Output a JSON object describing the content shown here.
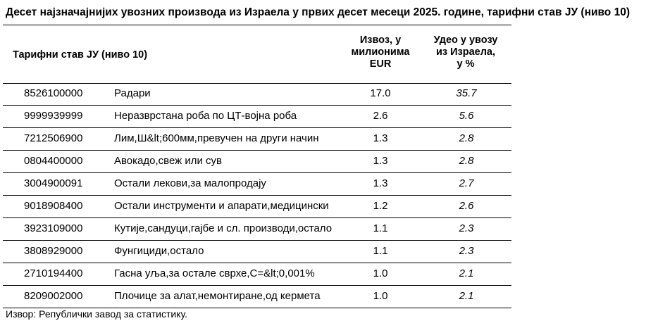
{
  "title": "Десет најзначајнијих увозних производа из Израела у првих десет месеци 2025. године, тарифни став ЈУ (ниво 10)",
  "header": {
    "label": "Тарифни став ЈУ (ниво 10)",
    "export": [
      "Извоз, у",
      "милионима",
      "EUR"
    ],
    "share": [
      "Удео у увозу",
      "из Израела,",
      "у %"
    ]
  },
  "rows": [
    {
      "code": "8526100000",
      "desc": "Радари",
      "export": "17.0",
      "share": "35.7"
    },
    {
      "code": "9999939999",
      "desc": "Неразврстана роба по ЦТ-војна роба",
      "export": "2.6",
      "share": "5.6"
    },
    {
      "code": "7212506900",
      "desc": "Лим,Ш&lt;600мм,превучен на други начин",
      "export": "1.3",
      "share": "2.8"
    },
    {
      "code": "0804400000",
      "desc": "Авокадо,свеж или сув",
      "export": "1.3",
      "share": "2.8"
    },
    {
      "code": "3004900091",
      "desc": "Остали лекови,за малопродају",
      "export": "1.3",
      "share": "2.7"
    },
    {
      "code": "9018908400",
      "desc": "Остали инструменти и апарати,медицински",
      "export": "1.2",
      "share": "2.6"
    },
    {
      "code": "3923109000",
      "desc": "Кутије,сандуци,гајбе и сл. производи,остало",
      "export": "1.1",
      "share": "2.3"
    },
    {
      "code": "3808929000",
      "desc": "Фунгициди,остало",
      "export": "1.1",
      "share": "2.3"
    },
    {
      "code": "2710194400",
      "desc": "Гасна уља,за остале сврхе,С=&lt;0,001%",
      "export": "1.0",
      "share": "2.1"
    },
    {
      "code": "8209002000",
      "desc": "Плочице за алат,немонтиране,од кермета",
      "export": "1.0",
      "share": "2.1"
    }
  ],
  "source": "Извор: Републички завод за статистику."
}
